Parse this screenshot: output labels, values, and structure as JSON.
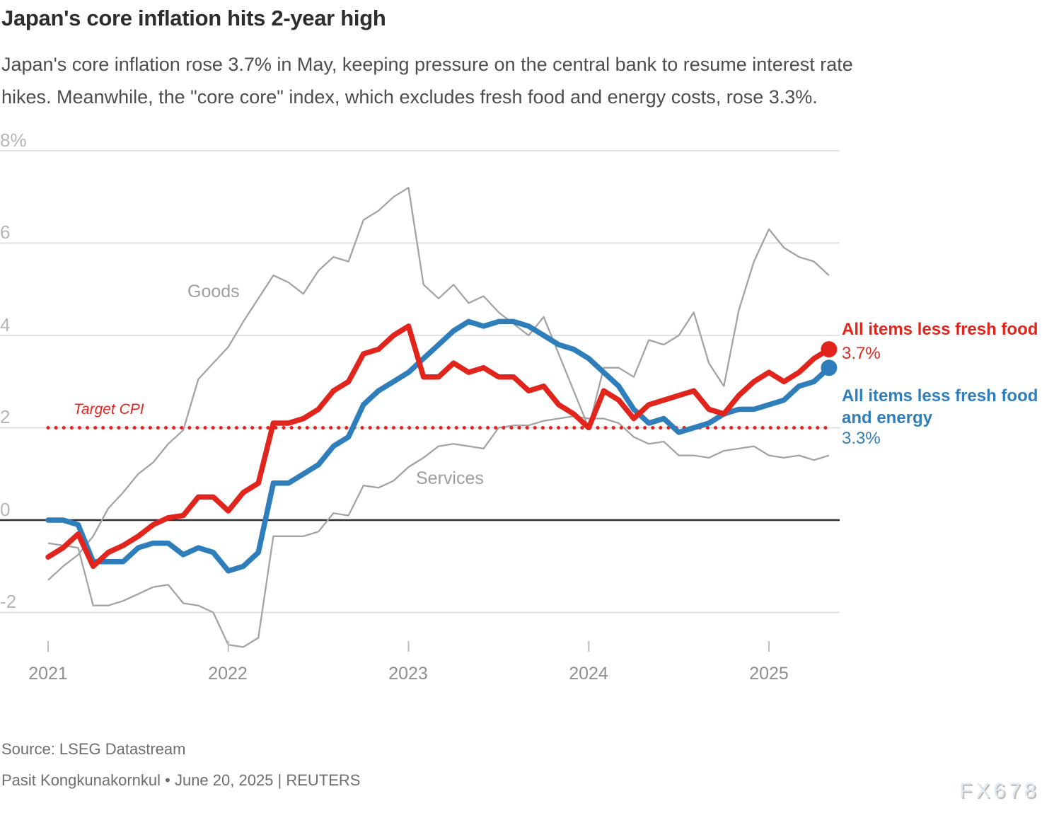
{
  "header": {
    "title": "Japan's core inflation hits 2-year high",
    "subtitle_lines": [
      "Japan's core inflation rose 3.7% in May, keeping pressure on the central bank to resume interest rate",
      "hikes. Meanwhile, the \"core core\" index, which excludes fresh food and energy costs, rose 3.3%."
    ]
  },
  "footer": {
    "source": "Source: LSEG Datastream",
    "byline": "Pasit Kongkunakornkul • June 20, 2025 | REUTERS",
    "watermark": "FX678"
  },
  "colors": {
    "red": "#e1251d",
    "blue": "#2f7ebc",
    "gray_line": "#a3a3a3",
    "gridline": "#d8d8d8",
    "zero_line": "#2e2e2e"
  },
  "chart_data": {
    "type": "line",
    "x": {
      "start": "2021-01",
      "end": "2025-05",
      "freq": "monthly",
      "n_points": 53
    },
    "x_tick_labels": [
      "2021",
      "2022",
      "2023",
      "2024",
      "2025"
    ],
    "y_tick_labels": [
      "8%",
      "6",
      "4",
      "2",
      "0",
      "-2"
    ],
    "y_ticks": [
      8,
      6,
      4,
      2,
      0,
      -2
    ],
    "ylim": [
      -3.2,
      8.3
    ],
    "grid": "horizontal",
    "legend_position": "inline-right",
    "unit": "percent, year-over-year",
    "target_line": {
      "label": "Target CPI",
      "value": 2
    },
    "annotations": {
      "goods_label": "Goods",
      "services_label": "Services"
    },
    "series": [
      {
        "name": "Goods",
        "color": "#a3a3a3",
        "values": [
          -1.3,
          -1.0,
          -0.75,
          -0.35,
          0.25,
          0.6,
          1.0,
          1.25,
          1.65,
          1.95,
          3.05,
          3.4,
          3.75,
          4.3,
          4.8,
          5.3,
          5.15,
          4.9,
          5.4,
          5.7,
          5.6,
          6.5,
          6.7,
          7.0,
          7.2,
          5.1,
          4.8,
          5.1,
          4.7,
          4.85,
          4.5,
          4.25,
          4.0,
          4.4,
          3.6,
          2.8,
          2.0,
          3.3,
          3.3,
          3.1,
          3.9,
          3.8,
          4.0,
          4.5,
          3.4,
          2.9,
          4.55,
          5.6,
          6.3,
          5.9,
          5.7,
          5.6,
          5.3
        ]
      },
      {
        "name": "Services",
        "color": "#a3a3a3",
        "values": [
          -0.5,
          -0.55,
          -0.6,
          -1.85,
          -1.85,
          -1.75,
          -1.6,
          -1.45,
          -1.4,
          -1.8,
          -1.85,
          -2.0,
          -2.7,
          -2.75,
          -2.55,
          -0.35,
          -0.35,
          -0.35,
          -0.25,
          0.15,
          0.1,
          0.75,
          0.7,
          0.85,
          1.15,
          1.35,
          1.6,
          1.65,
          1.6,
          1.55,
          2.0,
          2.05,
          2.05,
          2.15,
          2.2,
          2.25,
          2.2,
          2.2,
          2.1,
          1.8,
          1.65,
          1.7,
          1.4,
          1.4,
          1.35,
          1.5,
          1.55,
          1.6,
          1.4,
          1.35,
          1.4,
          1.3,
          1.4
        ]
      },
      {
        "name": "All items less fresh food",
        "end_label": "3.7%",
        "color": "#e1251d",
        "values": [
          -0.8,
          -0.6,
          -0.3,
          -1.0,
          -0.7,
          -0.55,
          -0.35,
          -0.1,
          0.05,
          0.1,
          0.5,
          0.5,
          0.2,
          0.6,
          0.8,
          2.1,
          2.1,
          2.2,
          2.4,
          2.8,
          3.0,
          3.6,
          3.7,
          4.0,
          4.2,
          3.1,
          3.1,
          3.4,
          3.2,
          3.3,
          3.1,
          3.1,
          2.8,
          2.9,
          2.5,
          2.3,
          2.0,
          2.8,
          2.6,
          2.2,
          2.5,
          2.6,
          2.7,
          2.8,
          2.4,
          2.3,
          2.7,
          3.0,
          3.2,
          3.0,
          3.2,
          3.5,
          3.7
        ]
      },
      {
        "name": "All items less fresh food and energy",
        "name_lines": [
          "All items less fresh food",
          "and energy"
        ],
        "end_label": "3.3%",
        "color": "#2f7ebc",
        "values": [
          0.0,
          0.0,
          -0.1,
          -0.9,
          -0.9,
          -0.9,
          -0.6,
          -0.5,
          -0.5,
          -0.75,
          -0.6,
          -0.7,
          -1.1,
          -1.0,
          -0.7,
          0.8,
          0.8,
          1.0,
          1.2,
          1.6,
          1.8,
          2.5,
          2.8,
          3.0,
          3.2,
          3.5,
          3.8,
          4.1,
          4.3,
          4.2,
          4.3,
          4.3,
          4.2,
          4.0,
          3.8,
          3.7,
          3.5,
          3.2,
          2.9,
          2.4,
          2.1,
          2.2,
          1.9,
          2.0,
          2.1,
          2.3,
          2.4,
          2.4,
          2.5,
          2.6,
          2.9,
          3.0,
          3.3
        ]
      }
    ]
  }
}
